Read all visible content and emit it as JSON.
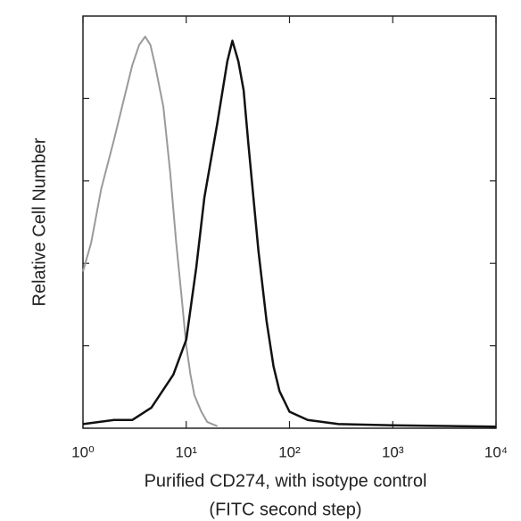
{
  "chart_data": {
    "type": "line",
    "y_label": "Relative Cell Number",
    "x_label": [
      "Purified CD274, with isotype control",
      "(FITC second step)"
    ],
    "x_scale": "log",
    "xlim": [
      1,
      10000
    ],
    "xticks": [
      {
        "value": 1,
        "label": "10⁰"
      },
      {
        "value": 10,
        "label": "10¹"
      },
      {
        "value": 100,
        "label": "10²"
      },
      {
        "value": 1000,
        "label": "10³"
      },
      {
        "value": 10000,
        "label": "10⁴"
      }
    ],
    "ylim": [
      0,
      100
    ],
    "yticks": [
      0,
      20,
      40,
      60,
      80
    ],
    "series": [
      {
        "color": "#9a9a9a",
        "x": [
          1,
          1.2,
          1.5,
          2,
          2.5,
          3,
          3.5,
          4,
          4.5,
          5,
          6,
          7,
          8,
          9,
          10,
          11,
          12,
          14,
          16,
          20
        ],
        "values": [
          38,
          45,
          58,
          70,
          80,
          88,
          93,
          95,
          93,
          88,
          78,
          62,
          45,
          32,
          20,
          13,
          8,
          4,
          1.5,
          0.5
        ]
      },
      {
        "color": "#111111",
        "x": [
          1,
          2,
          3,
          4.6,
          7.5,
          10,
          12.5,
          15,
          20,
          25,
          28,
          32,
          36,
          40,
          50,
          60,
          70,
          80,
          100,
          150,
          300,
          1000,
          10000
        ],
        "values": [
          1,
          2,
          2,
          5,
          13,
          21.5,
          39,
          56,
          74,
          89,
          94,
          89,
          82,
          69,
          43,
          26,
          15,
          9,
          4,
          2,
          1,
          0.7,
          0.4
        ]
      }
    ]
  }
}
